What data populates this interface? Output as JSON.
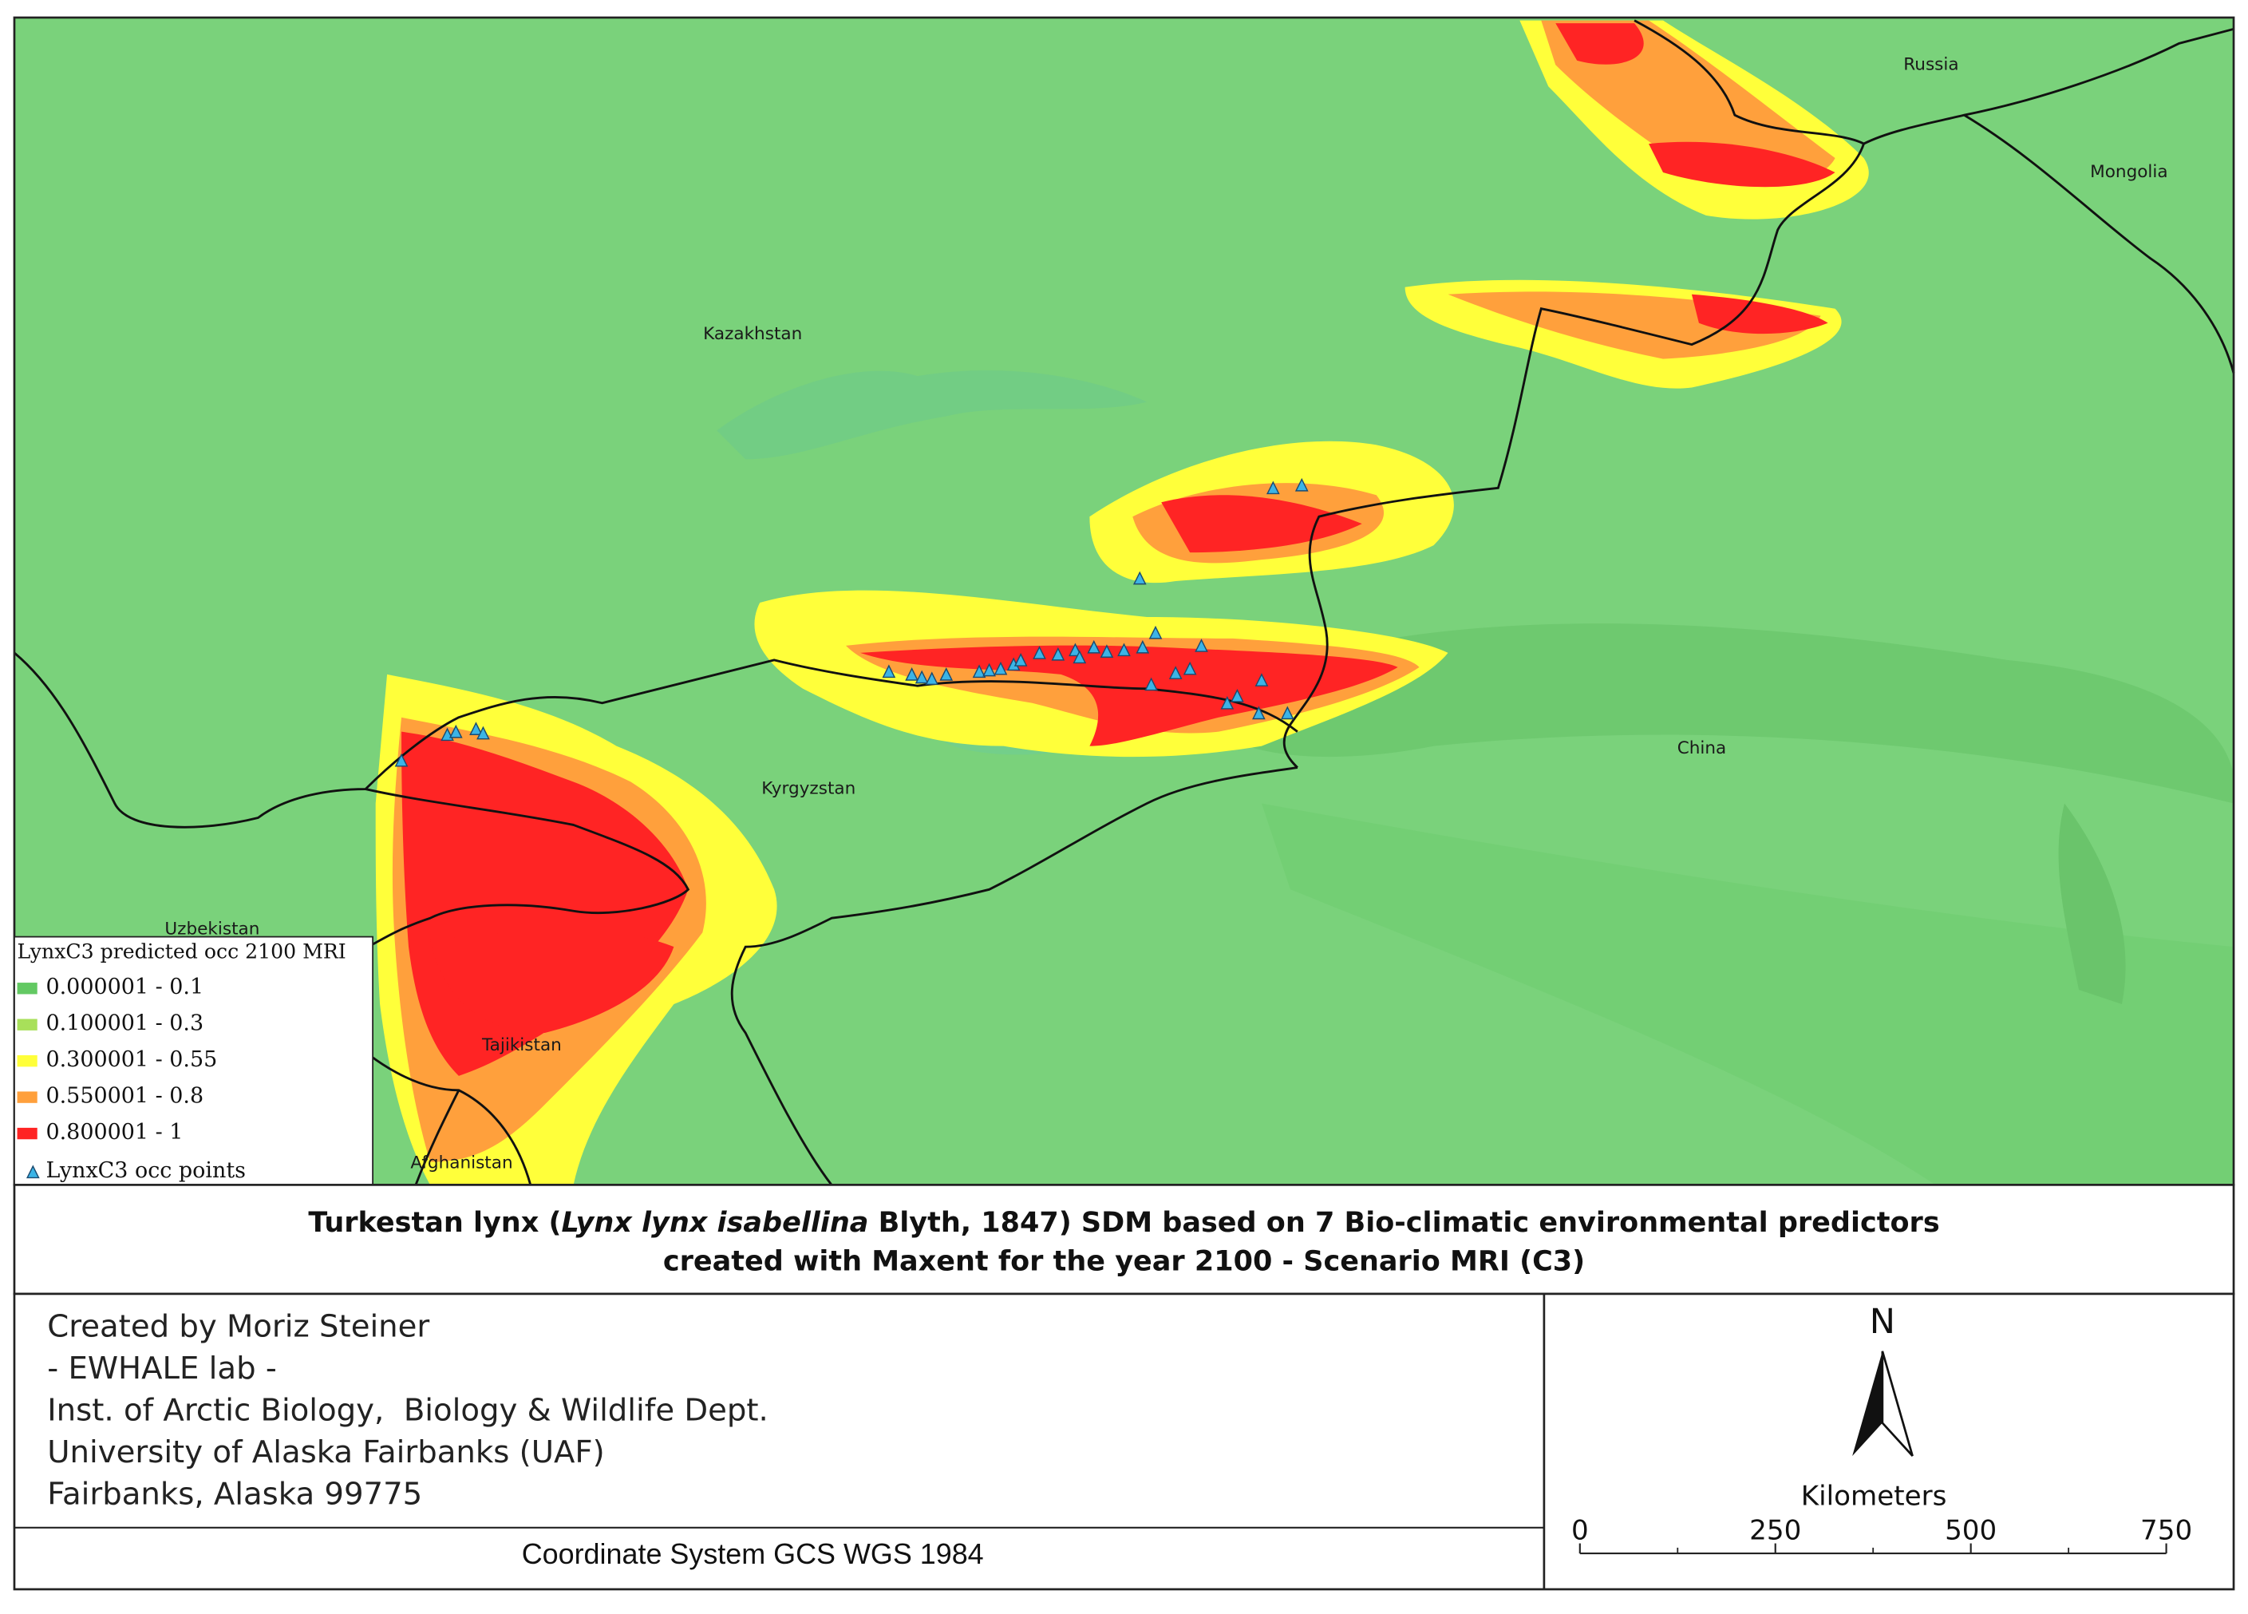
{
  "map": {
    "labels": [
      "Russia",
      "Mongolia",
      "Kazakhstan",
      "China",
      "Kyrgyzstan",
      "Uzbekistan",
      "Tajikistan",
      "Afghanistan"
    ]
  },
  "legend": {
    "title": "LynxC3 predicted occ 2100 MRI",
    "items": [
      "0.000001 - 0.1",
      "0.100001 - 0.3",
      "0.300001 - 0.55",
      "0.550001 - 0.8",
      "0.800001 - 1"
    ],
    "colors": [
      "#63c963",
      "#a8e05a",
      "#ffff3a",
      "#ffa03c",
      "#ff2424"
    ],
    "points": "LynxC3 occ points"
  },
  "title": {
    "line1_start": "Turkestan lynx (",
    "line1_italic": "Lynx lynx isabellina",
    "line1_end": " Blyth, 1847) SDM based on 7 Bio-climatic environmental predictors",
    "line2": "created with Maxent for the year 2100 - Scenario MRI (C3)"
  },
  "credits": [
    "Created by Moriz Steiner",
    "- EWHALE lab -",
    "Inst. of Arctic Biology,  Biology & Wildlife Dept.",
    "University of Alaska Fairbanks (UAF)",
    "Fairbanks, Alaska 99775"
  ],
  "coordinate_system": "Coordinate System GCS WGS 1984",
  "north": "N",
  "scale": {
    "unit": "Kilometers",
    "ticks": [
      0,
      250,
      500,
      750
    ]
  }
}
